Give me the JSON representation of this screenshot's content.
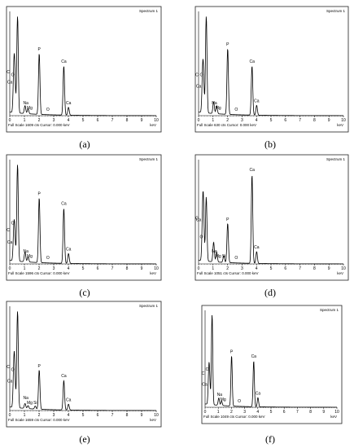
{
  "panel_title": "Spectrum 1",
  "x_unit": "keV",
  "chart_data": [
    {
      "type": "line",
      "caption": "(a)",
      "footer": "Full Scale 1609 cts  Cursor: 0.000 keV",
      "xlim": [
        0,
        10
      ],
      "peaks": [
        {
          "label": "C",
          "x": 0.28,
          "h": 0.38
        },
        {
          "label": "Ca",
          "x": 0.34,
          "h": 0.34
        },
        {
          "label": "O",
          "x": 0.53,
          "h": 1.0
        },
        {
          "label": "Na",
          "x": 1.04,
          "h": 0.08
        },
        {
          "label": "Mg",
          "x": 1.25,
          "h": 0.05
        },
        {
          "label": "P",
          "x": 2.01,
          "h": 0.62
        },
        {
          "label": "O",
          "x": 2.6,
          "h": 0.0
        },
        {
          "label": "Ca",
          "x": 3.69,
          "h": 0.5
        },
        {
          "label": "Ca",
          "x": 4.01,
          "h": 0.08
        }
      ]
    },
    {
      "type": "line",
      "caption": "(b)",
      "footer": "Full Scale 630 cts  Cursor: 0.000 keV",
      "xlim": [
        0,
        10
      ],
      "peaks": [
        {
          "label": "C",
          "x": 0.28,
          "h": 0.35
        },
        {
          "label": "Ca",
          "x": 0.34,
          "h": 0.3
        },
        {
          "label": "O",
          "x": 0.53,
          "h": 1.0
        },
        {
          "label": "Na",
          "x": 1.04,
          "h": 0.12
        },
        {
          "label": "Mg",
          "x": 1.25,
          "h": 0.08
        },
        {
          "label": "P",
          "x": 2.01,
          "h": 0.67
        },
        {
          "label": "O",
          "x": 2.6,
          "h": 0.0
        },
        {
          "label": "Ca",
          "x": 3.69,
          "h": 0.5
        },
        {
          "label": "Ca",
          "x": 4.01,
          "h": 0.1
        }
      ]
    },
    {
      "type": "line",
      "caption": "(c)",
      "footer": "Full Scale 1596 cts  Cursor: 0.000 keV",
      "xlim": [
        0,
        10
      ],
      "peaks": [
        {
          "label": "C",
          "x": 0.28,
          "h": 0.28
        },
        {
          "label": "Ca",
          "x": 0.34,
          "h": 0.22
        },
        {
          "label": "O",
          "x": 0.53,
          "h": 1.0
        },
        {
          "label": "Na",
          "x": 1.04,
          "h": 0.1
        },
        {
          "label": "Mg",
          "x": 1.25,
          "h": 0.05
        },
        {
          "label": "P",
          "x": 2.01,
          "h": 0.66
        },
        {
          "label": "O",
          "x": 2.6,
          "h": 0.0
        },
        {
          "label": "Ca",
          "x": 3.69,
          "h": 0.56
        },
        {
          "label": "Ca",
          "x": 4.01,
          "h": 0.1
        }
      ]
    },
    {
      "type": "line",
      "caption": "(d)",
      "footer": "Full Scale 1051 cts  Cursor: 0.000 keV",
      "xlim": [
        0,
        10
      ],
      "peaks": [
        {
          "label": "C",
          "x": 0.28,
          "h": 0.4
        },
        {
          "label": "Ca",
          "x": 0.34,
          "h": 0.45
        },
        {
          "label": "O",
          "x": 0.53,
          "h": 0.65
        },
        {
          "label": "Na",
          "x": 1.04,
          "h": 0.2
        },
        {
          "label": "Mg",
          "x": 1.25,
          "h": 0.1
        },
        {
          "label": "Si",
          "x": 1.74,
          "h": 0.07
        },
        {
          "label": "P",
          "x": 2.01,
          "h": 0.4
        },
        {
          "label": "O",
          "x": 2.6,
          "h": 0.0
        },
        {
          "label": "Ca",
          "x": 3.69,
          "h": 0.9
        },
        {
          "label": "Ca",
          "x": 4.01,
          "h": 0.12
        }
      ]
    },
    {
      "type": "line",
      "caption": "(e)",
      "footer": "Full Scale 1659 cts  Cursor: 0.000 keV",
      "xlim": [
        0,
        10
      ],
      "peaks": [
        {
          "label": "C",
          "x": 0.28,
          "h": 0.38
        },
        {
          "label": "Ca",
          "x": 0.34,
          "h": 0.3
        },
        {
          "label": "O",
          "x": 0.53,
          "h": 1.0
        },
        {
          "label": "Na",
          "x": 1.04,
          "h": 0.05
        },
        {
          "label": "Mg",
          "x": 1.25,
          "h": 0.03
        },
        {
          "label": "Si",
          "x": 1.74,
          "h": 0.03
        },
        {
          "label": "P",
          "x": 2.01,
          "h": 0.4
        },
        {
          "label": "Ca",
          "x": 3.69,
          "h": 0.3
        },
        {
          "label": "Ca",
          "x": 4.01,
          "h": 0.06
        }
      ]
    },
    {
      "type": "line",
      "caption": "(f)",
      "footer": "Full Scale 1049 cts  Cursor: 0.000 keV",
      "xlim": [
        0,
        10
      ],
      "peaks": [
        {
          "label": "C",
          "x": 0.28,
          "h": 0.3
        },
        {
          "label": "Ca",
          "x": 0.34,
          "h": 0.25
        },
        {
          "label": "O",
          "x": 0.53,
          "h": 1.0
        },
        {
          "label": "Na",
          "x": 1.04,
          "h": 0.08
        },
        {
          "label": "Mg",
          "x": 1.25,
          "h": 0.05
        },
        {
          "label": "P",
          "x": 2.01,
          "h": 0.55
        },
        {
          "label": "O",
          "x": 2.6,
          "h": 0.0
        },
        {
          "label": "Ca",
          "x": 3.69,
          "h": 0.5
        },
        {
          "label": "Ca",
          "x": 4.01,
          "h": 0.1
        }
      ]
    }
  ]
}
